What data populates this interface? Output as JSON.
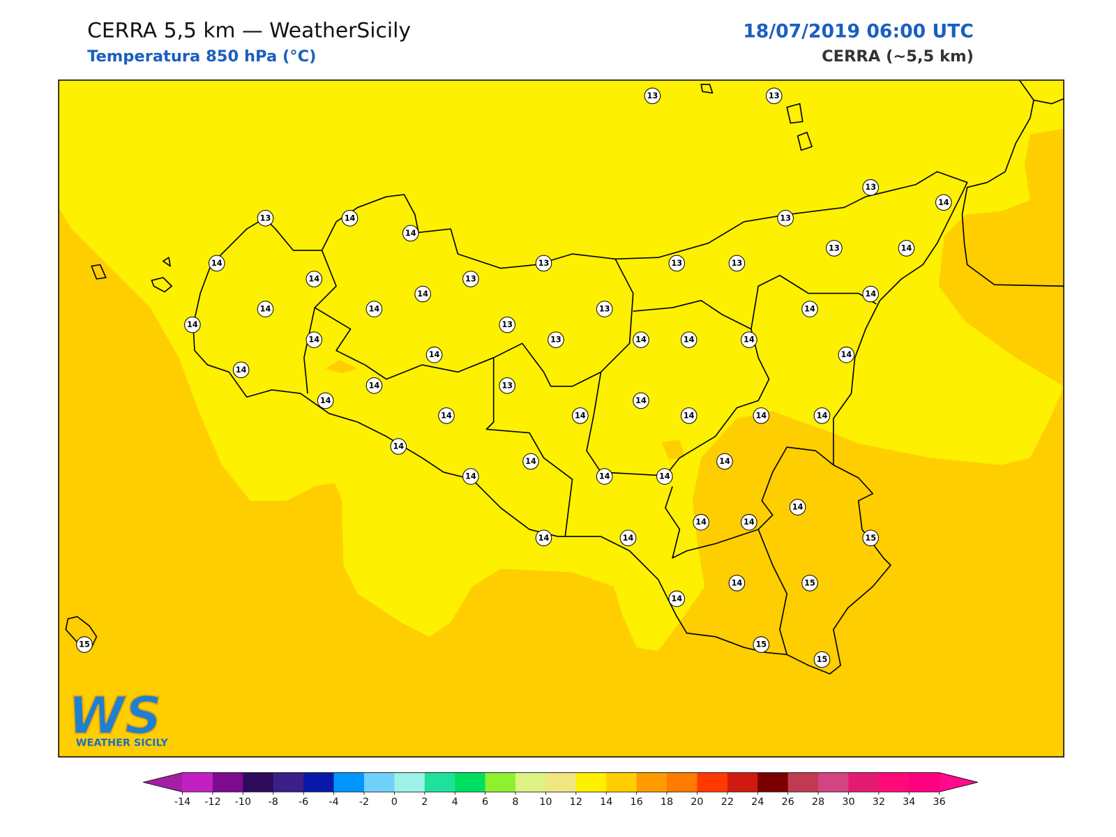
{
  "header": {
    "title": "CERRA 5,5 km — WeatherSicily",
    "subtitle": "Temperatura 850 hPa (°C)",
    "date": "18/07/2019 06:00 UTC",
    "model": "CERRA (~5,5 km)"
  },
  "logo": {
    "mark": "WS",
    "name": "WEATHER SICILY"
  },
  "stations": [
    13,
    13,
    13,
    14,
    13,
    14,
    14,
    13,
    14,
    14,
    13,
    13,
    13,
    13,
    13,
    14,
    14,
    14,
    14,
    14,
    13,
    13,
    14,
    14,
    14,
    14,
    13,
    14,
    14,
    14,
    14,
    14,
    14,
    13,
    14,
    14,
    14,
    14,
    14,
    14,
    14,
    14,
    14,
    14,
    14,
    14,
    14,
    14,
    14,
    14,
    14,
    14,
    15,
    14,
    15,
    14,
    15,
    15,
    15
  ],
  "colorbar": {
    "ticks": [
      -14,
      -12,
      -10,
      -8,
      -6,
      -4,
      -2,
      0,
      2,
      4,
      6,
      8,
      10,
      12,
      14,
      16,
      18,
      20,
      22,
      24,
      26,
      28,
      30,
      32,
      34,
      36
    ],
    "colors": [
      "#c21fc2",
      "#7d0a8f",
      "#2e0a5a",
      "#3b1f88",
      "#0a1aa8",
      "#0096ff",
      "#6fd0f8",
      "#9ef2e8",
      "#1ee29c",
      "#00e060",
      "#8ef030",
      "#dcf284",
      "#f0e680",
      "#fdf000",
      "#ffce00",
      "#ff9a00",
      "#ff7a00",
      "#ff3a00",
      "#cf1a10",
      "#7a0000",
      "#c03a52",
      "#d24482",
      "#e41a70",
      "#ff0a78",
      "#ff0080"
    ],
    "under": "#a41fa4",
    "over": "#ff0a8a"
  }
}
